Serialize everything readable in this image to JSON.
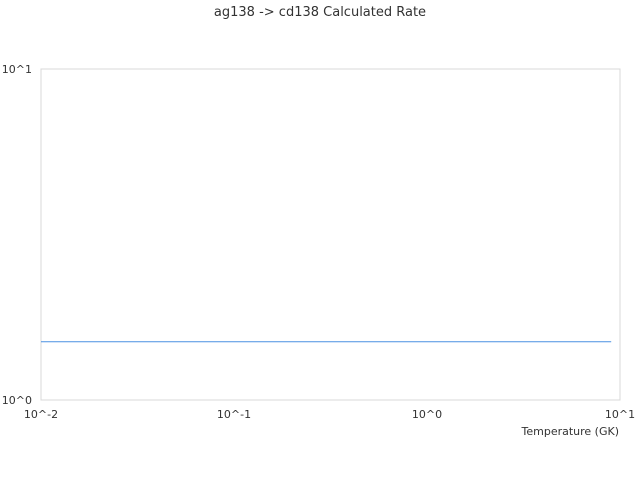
{
  "chart_data": {
    "type": "line",
    "title": "ag138 -> cd138 Calculated Rate",
    "xlabel": "Temperature (GK)",
    "ylabel": "",
    "xscale": "log",
    "yscale": "log",
    "xlim": [
      0.01,
      10
    ],
    "ylim": [
      1,
      10
    ],
    "xticks": [
      {
        "value": 0.01,
        "label": "10^-2"
      },
      {
        "value": 0.1,
        "label": "10^-1"
      },
      {
        "value": 1,
        "label": "10^0"
      },
      {
        "value": 10,
        "label": "10^1"
      }
    ],
    "yticks": [
      {
        "value": 1,
        "label": "10^0"
      },
      {
        "value": 10,
        "label": "10^1"
      }
    ],
    "grid": false,
    "series": [
      {
        "x": [
          0.01,
          0.1,
          1,
          9
        ],
        "y": [
          1.5,
          1.5,
          1.5,
          1.5
        ],
        "color": "#4a90e2"
      }
    ],
    "axis_color": "#d8d8d8"
  }
}
